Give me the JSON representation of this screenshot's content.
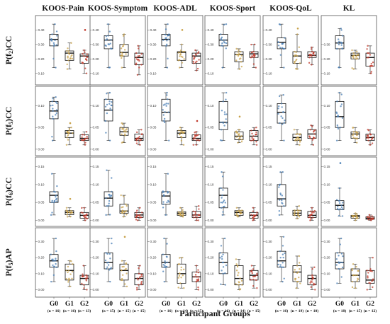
{
  "figure": {
    "columns": [
      "KOOS-Pain",
      "KOOS-Symptom",
      "KOOS-ADL",
      "KOOS-Sport",
      "KOOS-QoL",
      "KL"
    ],
    "rows": [
      {
        "label_main": "P(f",
        "label_sub": "2",
        "label_tail": ")CC"
      },
      {
        "label_main": "P(f",
        "label_sub": "5",
        "label_tail": ")CC"
      },
      {
        "label_main": "P(f",
        "label_sub": "6",
        "label_tail": ")CC"
      },
      {
        "label_main": "P(f",
        "label_sub": "5",
        "label_tail": ")AP"
      }
    ],
    "group_labels": [
      "G0",
      "G1",
      "G2"
    ],
    "n_labels": [
      [
        "(n = 16)",
        "(n = 16)",
        "(n = 13)"
      ],
      [
        "(n = 15)",
        "(n = 15)",
        "(n = 15)"
      ],
      [
        "(n = 16)",
        "(n = 14)",
        "(n = 15)"
      ],
      [
        "(n = 16)",
        "(n = 14)",
        "(n = 15)"
      ],
      [
        "(n = 16)",
        "(n = 19)",
        "(n = 10)"
      ],
      [
        "(n = 18)",
        "(n = 15)",
        "(n = 12)"
      ]
    ],
    "x_title": "Participant Groups",
    "colors": {
      "G0": "#4a7fb5",
      "G1": "#c8a24a",
      "G2": "#c0392b",
      "box": "#111111",
      "frame": "#555555"
    }
  },
  "chart_data": {
    "type": "box",
    "groups": [
      "G0",
      "G1",
      "G2"
    ],
    "rows": [
      {
        "metric": "P(f2)CC",
        "ticks": [
          0.1,
          0.2,
          0.3,
          0.4
        ],
        "ticks_kl": [
          0.1,
          0.2,
          0.3
        ],
        "ylim": [
          0.05,
          0.47
        ],
        "panels": [
          {
            "boxes": [
              {
                "q1": 0.29,
                "median": 0.335,
                "q3": 0.37,
                "min": 0.14,
                "max": 0.44
              },
              {
                "q1": 0.19,
                "median": 0.24,
                "q3": 0.255,
                "min": 0.13,
                "max": 0.31
              },
              {
                "q1": 0.17,
                "median": 0.22,
                "q3": 0.235,
                "min": 0.1,
                "max": 0.26
              }
            ],
            "outliers": [
              null,
              null,
              [
                0.4
              ]
            ]
          },
          {
            "boxes": [
              {
                "q1": 0.27,
                "median": 0.33,
                "q3": 0.36,
                "min": 0.14,
                "max": 0.44
              },
              {
                "q1": 0.22,
                "median": 0.245,
                "q3": 0.3,
                "min": 0.14,
                "max": 0.37
              },
              {
                "q1": 0.16,
                "median": 0.21,
                "q3": 0.24,
                "min": 0.09,
                "max": 0.29
              }
            ],
            "outliers": [
              null,
              null,
              null
            ]
          },
          {
            "boxes": [
              {
                "q1": 0.29,
                "median": 0.335,
                "q3": 0.37,
                "min": 0.14,
                "max": 0.44
              },
              {
                "q1": 0.19,
                "median": 0.245,
                "q3": 0.25,
                "min": 0.14,
                "max": 0.3
              },
              {
                "q1": 0.17,
                "median": 0.22,
                "q3": 0.24,
                "min": 0.12,
                "max": 0.26
              }
            ],
            "outliers": [
              null,
              [
                0.4
              ],
              null
            ]
          },
          {
            "boxes": [
              {
                "q1": 0.29,
                "median": 0.33,
                "q3": 0.37,
                "min": 0.14,
                "max": 0.44
              },
              {
                "q1": 0.18,
                "median": 0.23,
                "q3": 0.25,
                "min": 0.13,
                "max": 0.27
              },
              {
                "q1": 0.21,
                "median": 0.235,
                "q3": 0.25,
                "min": 0.14,
                "max": 0.3
              }
            ],
            "outliers": [
              null,
              null,
              null
            ]
          },
          {
            "boxes": [
              {
                "q1": 0.27,
                "median": 0.315,
                "q3": 0.345,
                "min": 0.14,
                "max": 0.44
              },
              {
                "q1": 0.17,
                "median": 0.22,
                "q3": 0.25,
                "min": 0.13,
                "max": 0.37
              },
              {
                "q1": 0.21,
                "median": 0.225,
                "q3": 0.25,
                "min": 0.16,
                "max": 0.28
              }
            ],
            "outliers": [
              null,
              [
                0.41
              ],
              null
            ]
          },
          {
            "boxes": [
              {
                "q1": 0.27,
                "median": 0.31,
                "q3": 0.36,
                "min": 0.14,
                "max": 0.41
              },
              {
                "q1": 0.2,
                "median": 0.225,
                "q3": 0.24,
                "min": 0.13,
                "max": 0.26
              },
              {
                "q1": 0.15,
                "median": 0.21,
                "q3": 0.24,
                "min": 0.1,
                "max": 0.29
              }
            ],
            "outliers": [
              null,
              null,
              null
            ]
          }
        ]
      },
      {
        "metric": "P(f5)CC",
        "ticks": [
          0.0,
          0.05,
          0.1
        ],
        "ticks_kl": [
          0.0,
          0.05,
          0.1,
          0.15
        ],
        "ylim": [
          -0.005,
          0.135
        ],
        "panels": [
          {
            "boxes": [
              {
                "q1": 0.07,
                "median": 0.088,
                "q3": 0.11,
                "min": 0.02,
                "max": 0.12
              },
              {
                "q1": 0.027,
                "median": 0.037,
                "q3": 0.043,
                "min": 0.01,
                "max": 0.05
              },
              {
                "q1": 0.02,
                "median": 0.025,
                "q3": 0.033,
                "min": 0.01,
                "max": 0.04
              }
            ],
            "outliers": [
              null,
              [
                0.06
              ],
              null
            ]
          },
          {
            "boxes": [
              {
                "q1": 0.065,
                "median": 0.09,
                "q3": 0.115,
                "min": 0.02,
                "max": 0.13
              },
              {
                "q1": 0.032,
                "median": 0.04,
                "q3": 0.05,
                "min": 0.015,
                "max": 0.06
              },
              {
                "q1": 0.02,
                "median": 0.025,
                "q3": 0.035,
                "min": 0.01,
                "max": 0.045
              }
            ],
            "outliers": [
              null,
              null,
              null
            ]
          },
          {
            "boxes": [
              {
                "q1": 0.065,
                "median": 0.085,
                "q3": 0.115,
                "min": 0.02,
                "max": 0.13
              },
              {
                "q1": 0.027,
                "median": 0.037,
                "q3": 0.043,
                "min": 0.01,
                "max": 0.05
              },
              {
                "q1": 0.02,
                "median": 0.025,
                "q3": 0.033,
                "min": 0.01,
                "max": 0.04
              }
            ],
            "outliers": [
              null,
              null,
              [
                0.065
              ]
            ]
          },
          {
            "boxes": [
              {
                "q1": 0.045,
                "median": 0.062,
                "q3": 0.11,
                "min": 0.02,
                "max": 0.13
              },
              {
                "q1": 0.022,
                "median": 0.03,
                "q3": 0.04,
                "min": 0.015,
                "max": 0.045
              },
              {
                "q1": 0.02,
                "median": 0.03,
                "q3": 0.043,
                "min": 0.01,
                "max": 0.05
              }
            ],
            "outliers": [
              null,
              [
                0.075
              ],
              null
            ]
          },
          {
            "boxes": [
              {
                "q1": 0.06,
                "median": 0.085,
                "q3": 0.105,
                "min": 0.02,
                "max": 0.125
              },
              {
                "q1": 0.02,
                "median": 0.027,
                "q3": 0.035,
                "min": 0.01,
                "max": 0.045
              },
              {
                "q1": 0.025,
                "median": 0.035,
                "q3": 0.045,
                "min": 0.01,
                "max": 0.055
              }
            ],
            "outliers": [
              null,
              null,
              null
            ]
          },
          {
            "boxes": [
              {
                "q1": 0.05,
                "median": 0.075,
                "q3": 0.11,
                "min": 0.02,
                "max": 0.13
              },
              {
                "q1": 0.025,
                "median": 0.035,
                "q3": 0.04,
                "min": 0.015,
                "max": 0.05
              },
              {
                "q1": 0.02,
                "median": 0.027,
                "q3": 0.035,
                "min": 0.01,
                "max": 0.045
              }
            ],
            "outliers": [
              null,
              null,
              null
            ]
          }
        ]
      },
      {
        "metric": "P(f6)CC",
        "ticks": [
          0.0,
          0.05,
          0.1,
          0.15
        ],
        "ticks_kl": [
          0.0,
          0.05,
          0.1,
          0.15
        ],
        "ylim": [
          -0.005,
          0.165
        ],
        "panels": [
          {
            "boxes": [
              {
                "q1": 0.05,
                "median": 0.07,
                "q3": 0.08,
                "min": 0.015,
                "max": 0.13
              },
              {
                "q1": 0.016,
                "median": 0.022,
                "q3": 0.027,
                "min": 0.01,
                "max": 0.035
              },
              {
                "q1": 0.006,
                "median": 0.014,
                "q3": 0.022,
                "min": 0.0,
                "max": 0.035
              }
            ],
            "outliers": [
              null,
              [
                0.06
              ],
              null
            ]
          },
          {
            "boxes": [
              {
                "q1": 0.04,
                "median": 0.062,
                "q3": 0.08,
                "min": 0.015,
                "max": 0.14
              },
              {
                "q1": 0.02,
                "median": 0.026,
                "q3": 0.045,
                "min": 0.01,
                "max": 0.07
              },
              {
                "q1": 0.008,
                "median": 0.015,
                "q3": 0.022,
                "min": 0.0,
                "max": 0.035
              }
            ],
            "outliers": [
              null,
              null,
              null
            ]
          },
          {
            "boxes": [
              {
                "q1": 0.045,
                "median": 0.068,
                "q3": 0.08,
                "min": 0.015,
                "max": 0.13
              },
              {
                "q1": 0.014,
                "median": 0.02,
                "q3": 0.024,
                "min": 0.01,
                "max": 0.035
              },
              {
                "q1": 0.008,
                "median": 0.015,
                "q3": 0.025,
                "min": 0.0,
                "max": 0.04
              }
            ],
            "outliers": [
              null,
              null,
              null
            ]
          },
          {
            "boxes": [
              {
                "q1": 0.035,
                "median": 0.07,
                "q3": 0.09,
                "min": 0.015,
                "max": 0.135
              },
              {
                "q1": 0.014,
                "median": 0.022,
                "q3": 0.027,
                "min": 0.01,
                "max": 0.035
              },
              {
                "q1": 0.006,
                "median": 0.014,
                "q3": 0.022,
                "min": 0.0,
                "max": 0.035
              }
            ],
            "outliers": [
              null,
              null,
              null
            ]
          },
          {
            "boxes": [
              {
                "q1": 0.04,
                "median": 0.06,
                "q3": 0.1,
                "min": 0.015,
                "max": 0.135
              },
              {
                "q1": 0.014,
                "median": 0.02,
                "q3": 0.028,
                "min": 0.005,
                "max": 0.04
              },
              {
                "q1": 0.008,
                "median": 0.014,
                "q3": 0.025,
                "min": 0.0,
                "max": 0.035
              }
            ],
            "outliers": [
              null,
              null,
              null
            ]
          },
          {
            "boxes": [
              {
                "q1": 0.03,
                "median": 0.042,
                "q3": 0.055,
                "min": 0.012,
                "max": 0.09
              },
              {
                "q1": 0.006,
                "median": 0.011,
                "q3": 0.014,
                "min": 0.0,
                "max": 0.02
              },
              {
                "q1": 0.003,
                "median": 0.006,
                "q3": 0.01,
                "min": 0.0,
                "max": 0.015
              }
            ],
            "outliers": [
              [
                0.16
              ],
              null,
              null
            ]
          }
        ]
      },
      {
        "metric": "P(f5)AP",
        "ticks": [
          0.0,
          0.1,
          0.2,
          0.3
        ],
        "ticks_kl": [
          0.0,
          0.1,
          0.2,
          0.3
        ],
        "ylim": [
          -0.02,
          0.36
        ],
        "panels": [
          {
            "boxes": [
              {
                "q1": 0.14,
                "median": 0.18,
                "q3": 0.22,
                "min": 0.05,
                "max": 0.32
              },
              {
                "q1": 0.06,
                "median": 0.12,
                "q3": 0.16,
                "min": 0.02,
                "max": 0.18
              },
              {
                "q1": 0.03,
                "median": 0.07,
                "q3": 0.09,
                "min": 0.0,
                "max": 0.15
              }
            ],
            "outliers": [
              null,
              null,
              null
            ]
          },
          {
            "boxes": [
              {
                "q1": 0.13,
                "median": 0.17,
                "q3": 0.23,
                "min": 0.05,
                "max": 0.32
              },
              {
                "q1": 0.06,
                "median": 0.12,
                "q3": 0.16,
                "min": 0.02,
                "max": 0.18
              },
              {
                "q1": 0.03,
                "median": 0.07,
                "q3": 0.1,
                "min": 0.0,
                "max": 0.15
              }
            ],
            "outliers": [
              null,
              [
                0.33
              ],
              null
            ]
          },
          {
            "boxes": [
              {
                "q1": 0.14,
                "median": 0.17,
                "q3": 0.22,
                "min": 0.05,
                "max": 0.32
              },
              {
                "q1": 0.04,
                "median": 0.1,
                "q3": 0.16,
                "min": 0.01,
                "max": 0.2
              },
              {
                "q1": 0.05,
                "median": 0.08,
                "q3": 0.11,
                "min": 0.0,
                "max": 0.15
              }
            ],
            "outliers": [
              null,
              null,
              null
            ]
          },
          {
            "boxes": [
              {
                "q1": 0.1,
                "median": 0.17,
                "q3": 0.23,
                "min": 0.03,
                "max": 0.32
              },
              {
                "q1": 0.03,
                "median": 0.07,
                "q3": 0.15,
                "min": 0.0,
                "max": 0.19
              },
              {
                "q1": 0.06,
                "median": 0.09,
                "q3": 0.12,
                "min": 0.01,
                "max": 0.15
              }
            ],
            "outliers": [
              null,
              null,
              null
            ]
          },
          {
            "boxes": [
              {
                "q1": 0.14,
                "median": 0.18,
                "q3": 0.24,
                "min": 0.05,
                "max": 0.33
              },
              {
                "q1": 0.05,
                "median": 0.11,
                "q3": 0.15,
                "min": 0.01,
                "max": 0.21
              },
              {
                "q1": 0.03,
                "median": 0.07,
                "q3": 0.09,
                "min": 0.0,
                "max": 0.14
              }
            ],
            "outliers": [
              null,
              null,
              null
            ]
          },
          {
            "boxes": [
              {
                "q1": 0.13,
                "median": 0.17,
                "q3": 0.23,
                "min": 0.04,
                "max": 0.32
              },
              {
                "q1": 0.05,
                "median": 0.09,
                "q3": 0.13,
                "min": 0.01,
                "max": 0.16
              },
              {
                "q1": 0.04,
                "median": 0.06,
                "q3": 0.12,
                "min": 0.0,
                "max": 0.2
              }
            ],
            "outliers": [
              null,
              null,
              null
            ]
          }
        ]
      }
    ]
  }
}
